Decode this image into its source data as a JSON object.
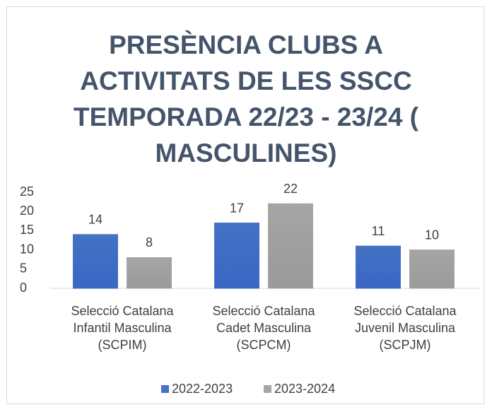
{
  "chart_data": {
    "type": "bar",
    "title": "PRESÈNCIA CLUBS A ACTIVITATS DE LES SSCC TEMPORADA 22/23 - 23/24 ( MASCULINES)",
    "categories": [
      "Selecció Catalana Infantil Masculina (SCPIM)",
      "Selecció Catalana Cadet Masculina (SCPCM)",
      "Selecció Catalana Juvenil Masculina (SCPJM)"
    ],
    "series": [
      {
        "name": "2022-2023",
        "color": "#4472c4",
        "values": [
          14,
          17,
          11
        ]
      },
      {
        "name": "2023-2024",
        "color": "#a5a5a5",
        "values": [
          8,
          22,
          10
        ]
      }
    ],
    "ylim": [
      0,
      25
    ],
    "yticks": [
      0,
      5,
      10,
      15,
      20,
      25
    ],
    "grid": false,
    "legend": "bottom"
  }
}
